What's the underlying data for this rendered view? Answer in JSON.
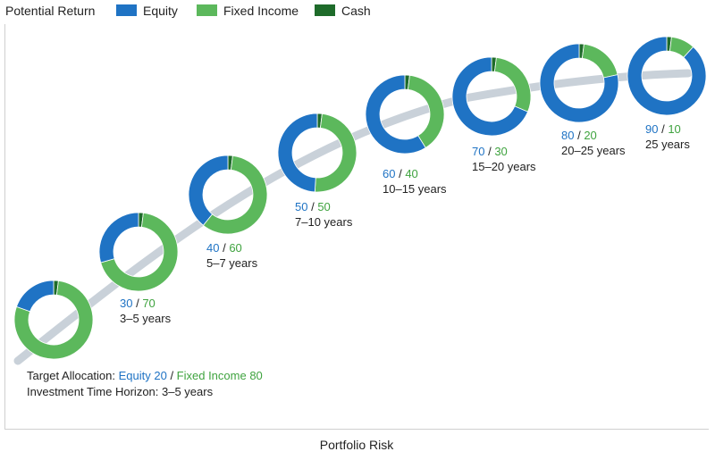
{
  "header": {
    "ylabel": "Potential Return"
  },
  "legend": [
    {
      "name": "Equity",
      "color": "#1f73c4"
    },
    {
      "name": "Fixed Income",
      "color": "#5cb85c"
    },
    {
      "name": "Cash",
      "color": "#1e6b2a"
    }
  ],
  "footer": {
    "xlabel": "Portfolio Risk"
  },
  "first_point": {
    "allocation_prefix": "Target Allocation: ",
    "allocation_equity": "Equity 20",
    "allocation_sep": " / ",
    "allocation_fixed": "Fixed Income 80",
    "horizon": "Investment Time Horizon: 3–5 years"
  },
  "chart_data": {
    "type": "pie",
    "variant": "donut-series",
    "ylabel": "Potential Return",
    "xlabel": "Portfolio Risk",
    "legend_position": "top",
    "series_names": [
      "Equity",
      "Fixed Income",
      "Cash"
    ],
    "colors": {
      "equity": "#1f73c4",
      "fixed": "#5cb85c",
      "cash": "#1e6b2a",
      "trend": "#c9d1d9"
    },
    "points": [
      {
        "equity": 20,
        "fixed": 80,
        "cash": 2,
        "label_equity": "",
        "label_fixed": "",
        "horizon": ""
      },
      {
        "equity": 30,
        "fixed": 70,
        "cash": 2,
        "label_equity": "30",
        "label_fixed": "70",
        "horizon": "3–5 years"
      },
      {
        "equity": 40,
        "fixed": 60,
        "cash": 2,
        "label_equity": "40",
        "label_fixed": "60",
        "horizon": "5–7 years"
      },
      {
        "equity": 50,
        "fixed": 50,
        "cash": 2,
        "label_equity": "50",
        "label_fixed": "50",
        "horizon": "7–10 years"
      },
      {
        "equity": 60,
        "fixed": 40,
        "cash": 2,
        "label_equity": "60",
        "label_fixed": "40",
        "horizon": "10–15 years"
      },
      {
        "equity": 70,
        "fixed": 30,
        "cash": 2,
        "label_equity": "70",
        "label_fixed": "30",
        "horizon": "15–20 years"
      },
      {
        "equity": 80,
        "fixed": 20,
        "cash": 2,
        "label_equity": "80",
        "label_fixed": "20",
        "horizon": "20–25 years"
      },
      {
        "equity": 90,
        "fixed": 10,
        "cash": 2,
        "label_equity": "90",
        "label_fixed": "10",
        "horizon": "25 years"
      }
    ]
  }
}
